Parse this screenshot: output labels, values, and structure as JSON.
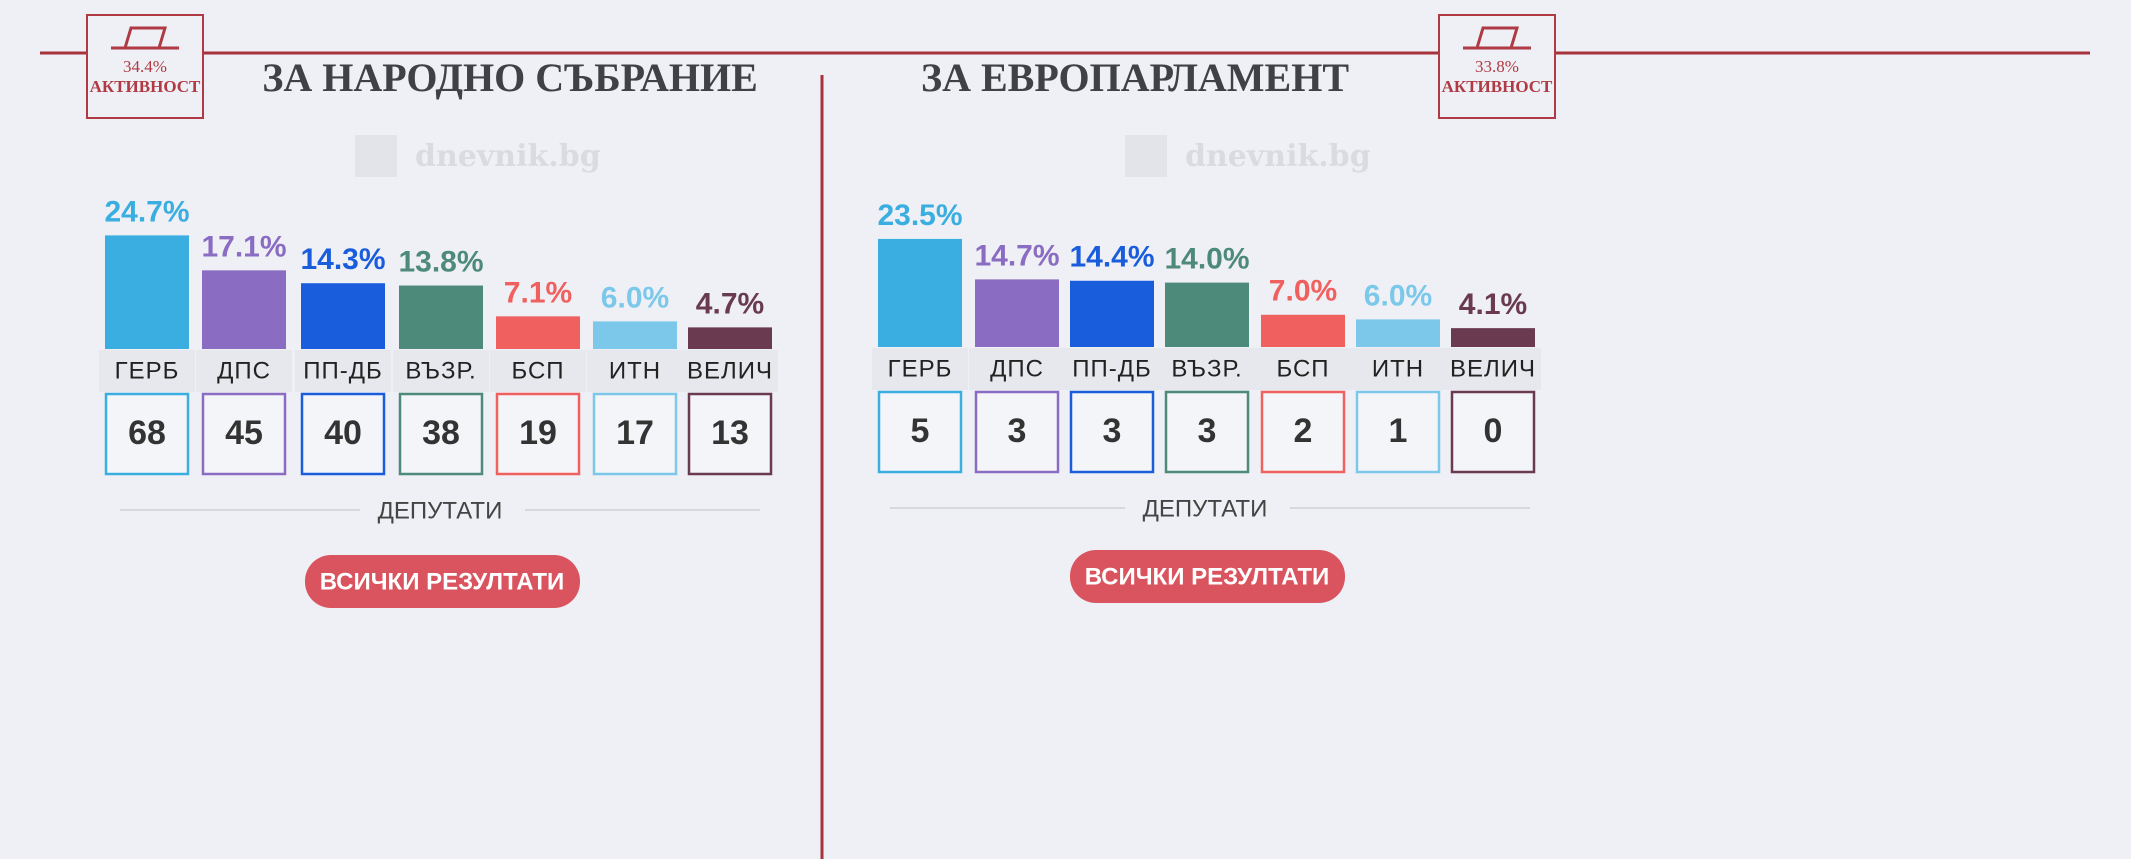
{
  "watermark": "dnevnik.bg",
  "chart_data": [
    {
      "type": "bar",
      "title": "ЗА НАРОДНО СЪБРАНИЕ",
      "turnout": "34.4%",
      "turnout_label": "АКТИВНОСТ",
      "categories": [
        "ГЕРБ",
        "ДПС",
        "ПП-ДБ",
        "ВЪЗР.",
        "БСП",
        "ИТН",
        "ВЕЛИЧ"
      ],
      "values": [
        24.7,
        17.1,
        14.3,
        13.8,
        7.1,
        6.0,
        4.7
      ],
      "value_labels": [
        "24.7%",
        "17.1%",
        "14.3%",
        "13.8%",
        "7.1%",
        "6.0%",
        "4.7%"
      ],
      "colors": [
        "#3aaee0",
        "#8a6cc2",
        "#1a5ddc",
        "#4e8a7a",
        "#f0605e",
        "#7cc8ea",
        "#6a3a50"
      ],
      "seats": [
        68,
        45,
        40,
        38,
        19,
        17,
        13
      ],
      "seats_label": "ДЕПУТАТИ",
      "button": "ВСИЧКИ РЕЗУЛТАТИ"
    },
    {
      "type": "bar",
      "title": "ЗА ЕВРОПАРЛАМЕНТ",
      "turnout": "33.8%",
      "turnout_label": "АКТИВНОСТ",
      "categories": [
        "ГЕРБ",
        "ДПС",
        "ПП-ДБ",
        "ВЪЗР.",
        "БСП",
        "ИТН",
        "ВЕЛИЧ"
      ],
      "values": [
        23.5,
        14.7,
        14.4,
        14.0,
        7.0,
        6.0,
        4.1
      ],
      "value_labels": [
        "23.5%",
        "14.7%",
        "14.4%",
        "14.0%",
        "7.0%",
        "6.0%",
        "4.1%"
      ],
      "colors": [
        "#3aaee0",
        "#8a6cc2",
        "#1a5ddc",
        "#4e8a7a",
        "#f0605e",
        "#7cc8ea",
        "#6a3a50"
      ],
      "seats": [
        5,
        3,
        3,
        3,
        2,
        1,
        0
      ],
      "seats_label": "ДЕПУТАТИ",
      "button": "ВСИЧКИ РЕЗУЛТАТИ"
    }
  ]
}
